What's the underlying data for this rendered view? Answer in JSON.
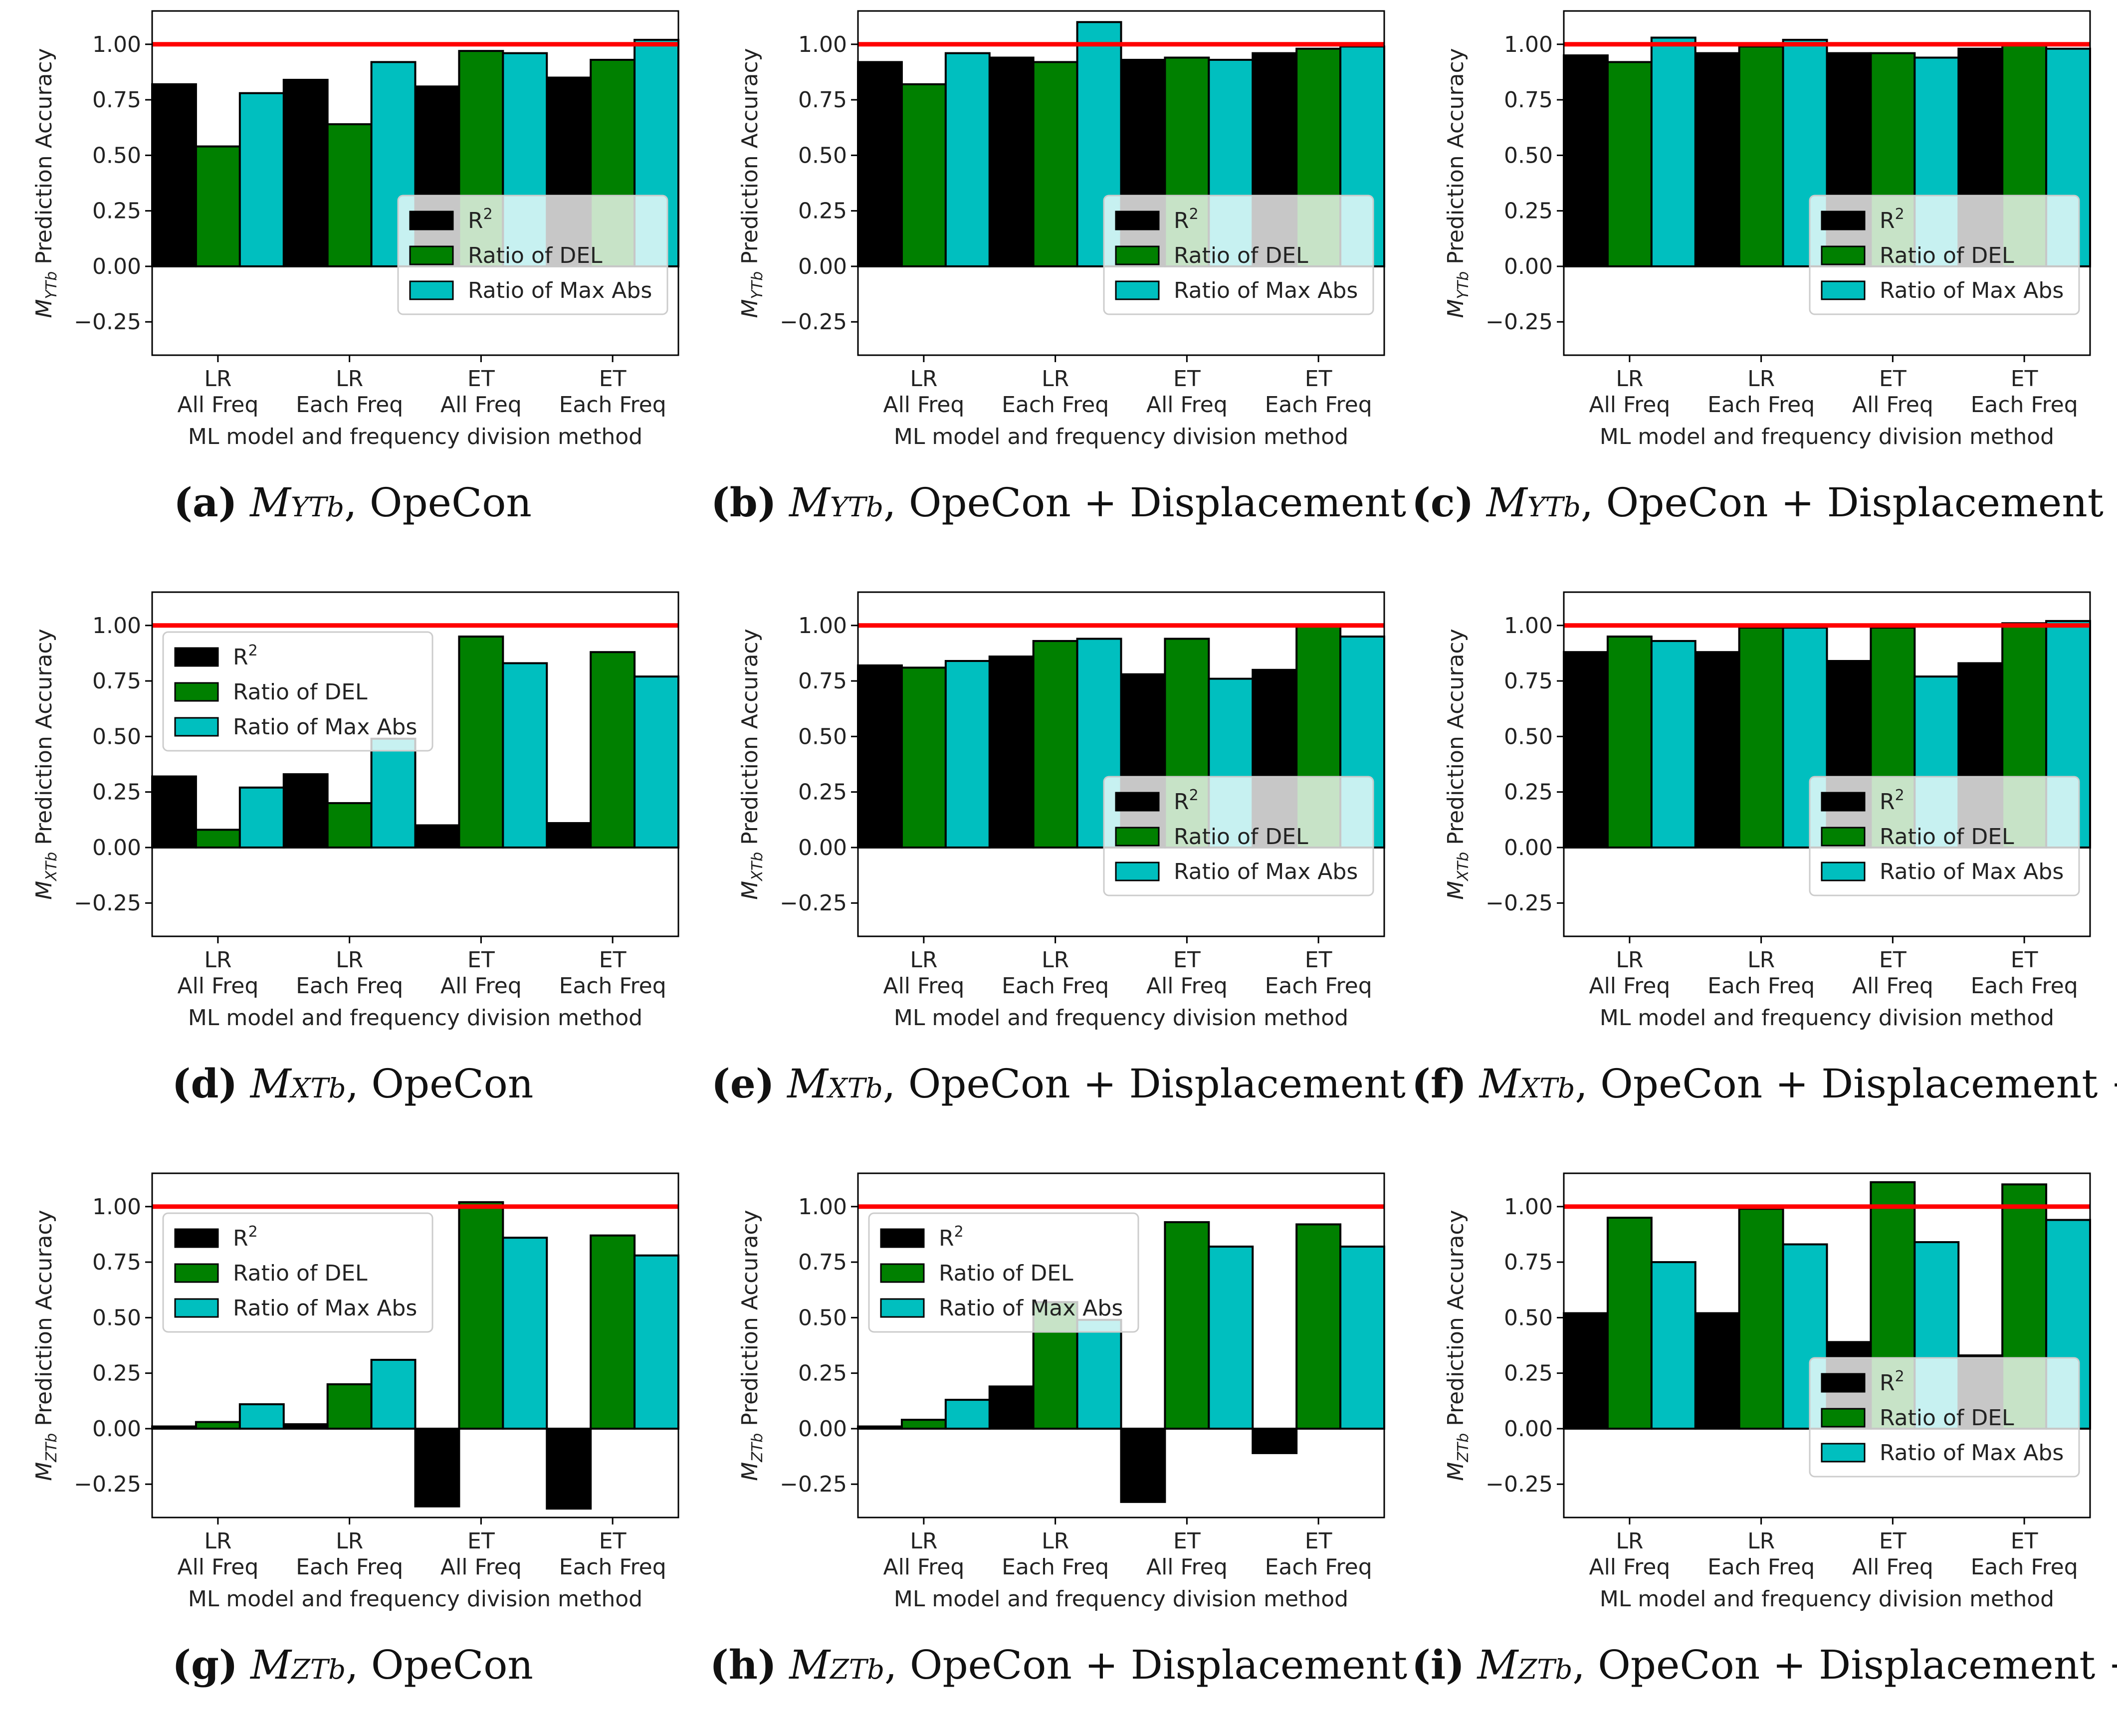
{
  "common": {
    "ylabel_suffix": "Prediction Accuracy",
    "xlabel": "ML model and frequency division method",
    "categories": [
      [
        "LR",
        "All Freq"
      ],
      [
        "LR",
        "Each Freq"
      ],
      [
        "ET",
        "All Freq"
      ],
      [
        "ET",
        "Each Freq"
      ]
    ],
    "legend": [
      "R2",
      "Ratio of DEL",
      "Ratio of Max Abs"
    ],
    "yticks": [
      "1.00",
      "0.75",
      "0.50",
      "0.25",
      "0.00",
      "−0.25"
    ],
    "colors": {
      "r2": "#000000",
      "del": "#008000",
      "maxabs": "#00BFBF",
      "reference_line": "#FF0000"
    }
  },
  "chart_data": [
    {
      "panel": "a",
      "type": "bar",
      "ylim": [
        -0.4,
        1.15
      ],
      "reference_line": 1.0,
      "legend_position": "lower-right",
      "ylabel_var": "M",
      "ylabel_sub": "YTb",
      "caption": {
        "letter": "(a)",
        "var": "M",
        "sub": "YTb",
        "rest": ", OpeCon"
      },
      "series": [
        {
          "name": "R2",
          "values": [
            0.82,
            0.84,
            0.81,
            0.85
          ]
        },
        {
          "name": "Ratio of DEL",
          "values": [
            0.54,
            0.64,
            0.97,
            0.93
          ]
        },
        {
          "name": "Ratio of Max Abs",
          "values": [
            0.78,
            0.92,
            0.96,
            1.02
          ]
        }
      ]
    },
    {
      "panel": "b",
      "type": "bar",
      "ylim": [
        -0.4,
        1.15
      ],
      "reference_line": 1.0,
      "legend_position": "lower-right",
      "ylabel_var": "M",
      "ylabel_sub": "YTb",
      "caption": {
        "letter": "(b)",
        "var": "M",
        "sub": "YTb",
        "rest": ", OpeCon + Displacement"
      },
      "series": [
        {
          "name": "R2",
          "values": [
            0.92,
            0.94,
            0.93,
            0.96
          ]
        },
        {
          "name": "Ratio of DEL",
          "values": [
            0.82,
            0.92,
            0.94,
            0.98
          ]
        },
        {
          "name": "Ratio of Max Abs",
          "values": [
            0.96,
            1.1,
            0.93,
            0.99
          ]
        }
      ]
    },
    {
      "panel": "c",
      "type": "bar",
      "ylim": [
        -0.4,
        1.15
      ],
      "reference_line": 1.0,
      "legend_position": "lower-right",
      "ylabel_var": "M",
      "ylabel_sub": "YTb",
      "caption": {
        "letter": "(c)",
        "var": "M",
        "sub": "YTb",
        "rest": ", OpeCon + Displacement + Angle"
      },
      "series": [
        {
          "name": "R2",
          "values": [
            0.95,
            0.96,
            0.96,
            0.98
          ]
        },
        {
          "name": "Ratio of DEL",
          "values": [
            0.92,
            0.99,
            0.96,
            1.0
          ]
        },
        {
          "name": "Ratio of Max Abs",
          "values": [
            1.03,
            1.02,
            0.94,
            0.98
          ]
        }
      ]
    },
    {
      "panel": "d",
      "type": "bar",
      "ylim": [
        -0.4,
        1.15
      ],
      "reference_line": 1.0,
      "legend_position": "upper-left",
      "ylabel_var": "M",
      "ylabel_sub": "XTb",
      "caption": {
        "letter": "(d)",
        "var": "M",
        "sub": "XTb",
        "rest": ", OpeCon"
      },
      "series": [
        {
          "name": "R2",
          "values": [
            0.32,
            0.33,
            0.1,
            0.11
          ]
        },
        {
          "name": "Ratio of DEL",
          "values": [
            0.08,
            0.2,
            0.95,
            0.88
          ]
        },
        {
          "name": "Ratio of Max Abs",
          "values": [
            0.27,
            0.49,
            0.83,
            0.77
          ]
        }
      ]
    },
    {
      "panel": "e",
      "type": "bar",
      "ylim": [
        -0.4,
        1.15
      ],
      "reference_line": 1.0,
      "legend_position": "lower-right",
      "ylabel_var": "M",
      "ylabel_sub": "XTb",
      "caption": {
        "letter": "(e)",
        "var": "M",
        "sub": "XTb",
        "rest": ", OpeCon + Displacement"
      },
      "series": [
        {
          "name": "R2",
          "values": [
            0.82,
            0.86,
            0.78,
            0.8
          ]
        },
        {
          "name": "Ratio of DEL",
          "values": [
            0.81,
            0.93,
            0.94,
            1.0
          ]
        },
        {
          "name": "Ratio of Max Abs",
          "values": [
            0.84,
            0.94,
            0.76,
            0.95
          ]
        }
      ]
    },
    {
      "panel": "f",
      "type": "bar",
      "ylim": [
        -0.4,
        1.15
      ],
      "reference_line": 1.0,
      "legend_position": "lower-right",
      "ylabel_var": "M",
      "ylabel_sub": "XTb",
      "caption": {
        "letter": "(f)",
        "var": "M",
        "sub": "XTb",
        "rest": ", OpeCon + Displacement + Angle"
      },
      "series": [
        {
          "name": "R2",
          "values": [
            0.88,
            0.88,
            0.84,
            0.83
          ]
        },
        {
          "name": "Ratio of DEL",
          "values": [
            0.95,
            0.99,
            0.99,
            1.01
          ]
        },
        {
          "name": "Ratio of Max Abs",
          "values": [
            0.93,
            0.99,
            0.77,
            1.02
          ]
        }
      ]
    },
    {
      "panel": "g",
      "type": "bar",
      "ylim": [
        -0.4,
        1.15
      ],
      "reference_line": 1.0,
      "legend_position": "upper-left",
      "ylabel_var": "M",
      "ylabel_sub": "ZTb",
      "caption": {
        "letter": "(g)",
        "var": "M",
        "sub": "ZTb",
        "rest": ", OpeCon"
      },
      "series": [
        {
          "name": "R2",
          "values": [
            0.01,
            0.02,
            -0.35,
            -0.36
          ]
        },
        {
          "name": "Ratio of DEL",
          "values": [
            0.03,
            0.2,
            1.02,
            0.87
          ]
        },
        {
          "name": "Ratio of Max Abs",
          "values": [
            0.11,
            0.31,
            0.86,
            0.78
          ]
        }
      ]
    },
    {
      "panel": "h",
      "type": "bar",
      "ylim": [
        -0.4,
        1.15
      ],
      "reference_line": 1.0,
      "legend_position": "upper-left",
      "ylabel_var": "M",
      "ylabel_sub": "ZTb",
      "caption": {
        "letter": "(h)",
        "var": "M",
        "sub": "ZTb",
        "rest": ", OpeCon + Displacement"
      },
      "series": [
        {
          "name": "R2",
          "values": [
            0.01,
            0.19,
            -0.33,
            -0.11
          ]
        },
        {
          "name": "Ratio of DEL",
          "values": [
            0.04,
            0.57,
            0.93,
            0.92
          ]
        },
        {
          "name": "Ratio of Max Abs",
          "values": [
            0.13,
            0.49,
            0.82,
            0.82
          ]
        }
      ]
    },
    {
      "panel": "i",
      "type": "bar",
      "ylim": [
        -0.4,
        1.15
      ],
      "reference_line": 1.0,
      "legend_position": "lower-right",
      "ylabel_var": "M",
      "ylabel_sub": "ZTb",
      "caption": {
        "letter": "(i)",
        "var": "M",
        "sub": "ZTb",
        "rest": ", OpeCon + Displacement + Angle"
      },
      "series": [
        {
          "name": "R2",
          "values": [
            0.52,
            0.52,
            0.39,
            0.33
          ]
        },
        {
          "name": "Ratio of DEL",
          "values": [
            0.95,
            0.99,
            1.11,
            1.1
          ]
        },
        {
          "name": "Ratio of Max Abs",
          "values": [
            0.75,
            0.83,
            0.84,
            0.94
          ]
        }
      ]
    }
  ]
}
